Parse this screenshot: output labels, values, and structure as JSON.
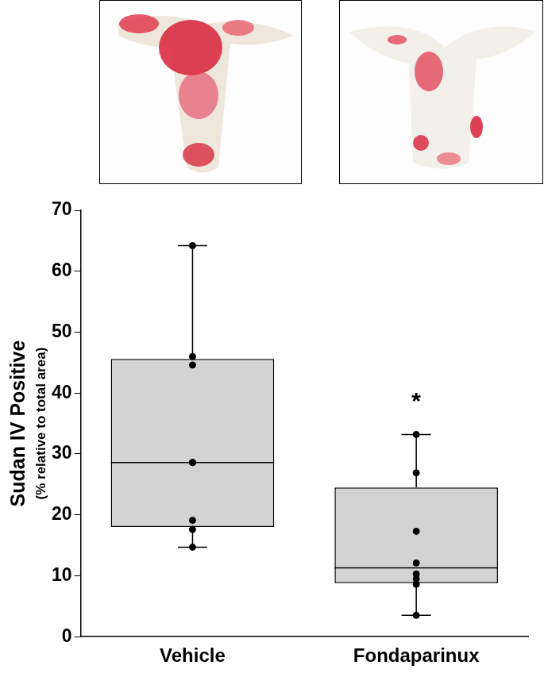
{
  "chart_data": {
    "type": "box",
    "categories": [
      "Vehicle",
      "Fondaparinux"
    ],
    "color": "#d3d3d3",
    "points": [
      [
        64.2,
        46.0,
        44.6,
        28.6,
        28.6,
        19.1,
        17.6,
        14.7
      ],
      [
        33.2,
        26.9,
        17.3,
        12.1,
        10.3,
        9.5,
        8.6,
        3.5
      ]
    ],
    "box": {
      "whisker_low": [
        14.7,
        3.5
      ],
      "q1": [
        18.0,
        8.8
      ],
      "median": [
        28.6,
        11.3
      ],
      "q3": [
        45.6,
        24.5
      ],
      "whisker_high": [
        64.2,
        33.2
      ]
    },
    "annotations": [
      {
        "category": "Fondaparinux",
        "y": 38.5,
        "text": "*"
      }
    ],
    "y_label": "Sudan IV Positive",
    "y_sublabel": "(% relative to total area)",
    "ylim": [
      0,
      70
    ],
    "yticks": [
      0,
      10,
      20,
      30,
      40,
      50,
      60,
      70
    ],
    "grid": false
  }
}
